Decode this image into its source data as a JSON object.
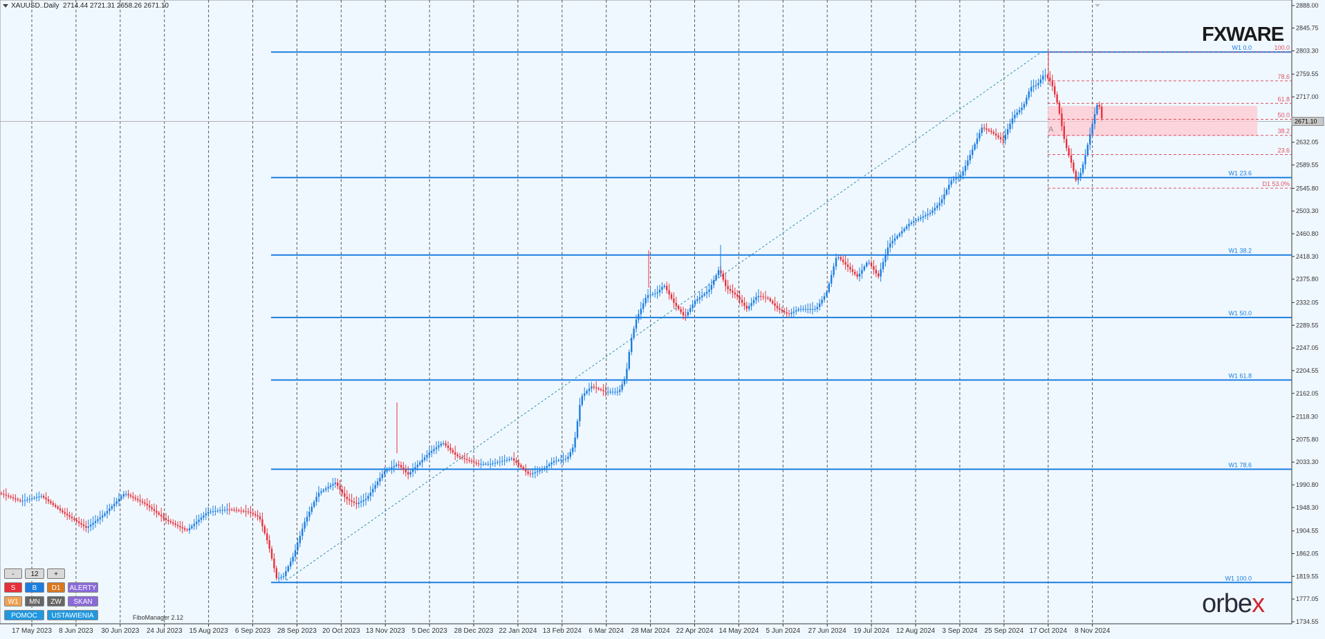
{
  "header": {
    "symbol": "XAUUSD..Daily",
    "ohlc": "2714.44 2721.31 2658.26 2671.10"
  },
  "brand": {
    "fxware": "FXWARE",
    "orbex_a": "orb",
    "orbex_b": "e",
    "orbex_c": "x"
  },
  "price_axis": {
    "labels": [
      "2888.00",
      "2845.75",
      "2803.30",
      "2759.55",
      "2717.00",
      "2674.55",
      "2632.05",
      "2589.55",
      "2545.80",
      "2503.30",
      "2460.80",
      "2418.30",
      "2375.80",
      "2332.05",
      "2289.55",
      "2247.05",
      "2204.55",
      "2162.05",
      "2118.30",
      "2075.80",
      "2033.30",
      "1990.80",
      "1948.30",
      "1904.55",
      "1862.05",
      "1819.55",
      "1777.05",
      "1734.55"
    ],
    "current_price": "2671.10"
  },
  "date_axis": {
    "labels": [
      "17 May 2023",
      "8 Jun 2023",
      "30 Jun 2023",
      "24 Jul 2023",
      "15 Aug 2023",
      "6 Sep 2023",
      "28 Sep 2023",
      "20 Oct 2023",
      "13 Nov 2023",
      "5 Dec 2023",
      "28 Dec 2023",
      "22 Jan 2024",
      "13 Feb 2024",
      "6 Mar 2024",
      "28 Mar 2024",
      "22 Apr 2024",
      "14 May 2024",
      "5 Jun 2024",
      "27 Jun 2024",
      "19 Jul 2024",
      "12 Aug 2024",
      "3 Sep 2024",
      "25 Sep 2024",
      "17 Oct 2024",
      "8 Nov 2024"
    ]
  },
  "weekly_fibo": [
    {
      "label": "W1 0.0",
      "price": 2801
    },
    {
      "label": "W1 23.6",
      "price": 2566
    },
    {
      "label": "W1 38.2",
      "price": 2421
    },
    {
      "label": "W1 50.0",
      "price": 2304
    },
    {
      "label": "W1 61.8",
      "price": 2187
    },
    {
      "label": "W1 78.6",
      "price": 2020
    },
    {
      "label": "W1 100.0",
      "price": 1808
    }
  ],
  "daily_fibo": [
    {
      "label": "100.0",
      "price": 2801
    },
    {
      "label": "78.6",
      "price": 2747
    },
    {
      "label": "61.8",
      "price": 2705
    },
    {
      "label": "50.0",
      "price": 2675
    },
    {
      "label": "38.2",
      "price": 2645
    },
    {
      "label": "23.6",
      "price": 2609
    },
    {
      "label": "D1 53.0%",
      "price": 2546
    }
  ],
  "zone": {
    "top": 2700,
    "bottom": 2644
  },
  "marker": "A",
  "panel": {
    "minus": "-",
    "value": "12",
    "plus": "+",
    "s": "S",
    "b": "B",
    "d1": "D1",
    "alerty": "ALERTY",
    "w1": "W1",
    "mn": "MN",
    "zw": "ZW",
    "skan": "SKAN",
    "pomoc": "POMOC",
    "ustawienia": "USTAWIENIA"
  },
  "footer_note": "FiboManager 2.12",
  "colors": {
    "bull": "#1a7de0",
    "bear": "#e8303a",
    "fibo": "#1a7de0",
    "dfibo": "#e05060",
    "zone": "#ffc8d0"
  }
}
